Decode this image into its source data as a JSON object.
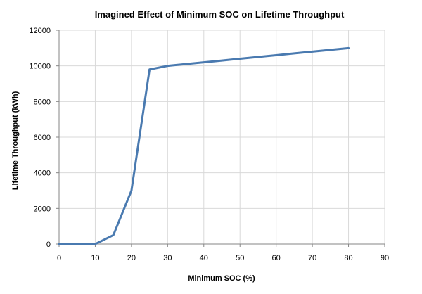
{
  "chart_data": {
    "type": "line",
    "title": "Imagined Effect of Minimum SOC on Lifetime Throughput",
    "xlabel": "Minimum SOC (%)",
    "ylabel": "Lifetime Throughput  (kWh)",
    "xlim": [
      0,
      90
    ],
    "ylim": [
      0,
      12000
    ],
    "xticks": [
      0,
      10,
      20,
      30,
      40,
      50,
      60,
      70,
      80,
      90
    ],
    "yticks": [
      0,
      2000,
      4000,
      6000,
      8000,
      10000,
      12000
    ],
    "grid": true,
    "legend": "none",
    "series": [
      {
        "name": "Lifetime Throughput",
        "color": "#4a7ab0",
        "x": [
          0,
          5,
          10,
          15,
          20,
          25,
          30,
          35,
          40,
          45,
          50,
          55,
          60,
          65,
          70,
          75,
          80
        ],
        "y": [
          0,
          0,
          0,
          500,
          3000,
          9800,
          10000,
          10100,
          10200,
          10300,
          10400,
          10500,
          10600,
          10700,
          10800,
          10900,
          11000
        ]
      }
    ]
  }
}
